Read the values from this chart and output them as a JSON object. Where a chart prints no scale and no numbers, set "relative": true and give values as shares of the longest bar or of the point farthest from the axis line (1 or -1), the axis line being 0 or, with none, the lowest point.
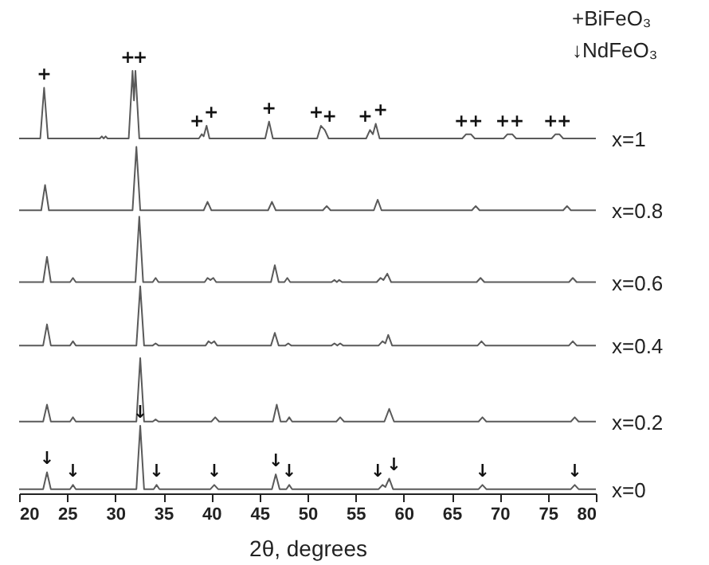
{
  "chart_data": {
    "type": "line",
    "relative": true,
    "xlabel": "2θ, degrees",
    "xlim": [
      20,
      80
    ],
    "xticks": [
      20,
      25,
      30,
      35,
      40,
      45,
      50,
      55,
      60,
      65,
      70,
      75,
      80
    ],
    "grid": false,
    "marker": "none",
    "line_style": "solid",
    "series": [
      {
        "name": "x=1",
        "color": "#5a5a5a",
        "x": [
          20,
          22.2,
          22.6,
          23.0,
          28.4,
          28.6,
          28.8,
          29.0,
          29.2,
          31.4,
          31.8,
          31.95,
          32.1,
          32.5,
          38.7,
          39.0,
          39.2,
          39.5,
          39.8,
          45.6,
          46.0,
          46.4,
          51.0,
          51.4,
          51.8,
          52.2,
          56.1,
          56.5,
          56.8,
          57.1,
          57.5,
          66.1,
          66.5,
          67.0,
          67.4,
          70.4,
          70.8,
          71.3,
          71.7,
          75.4,
          75.8,
          76.2,
          76.6,
          80
        ],
        "values": [
          0.84,
          0.84,
          0.96,
          0.84,
          0.84,
          0.845,
          0.84,
          0.845,
          0.84,
          0.84,
          1.0,
          0.93,
          1.0,
          0.84,
          0.84,
          0.85,
          0.845,
          0.87,
          0.84,
          0.84,
          0.88,
          0.84,
          0.84,
          0.87,
          0.86,
          0.84,
          0.84,
          0.86,
          0.85,
          0.875,
          0.84,
          0.84,
          0.85,
          0.85,
          0.84,
          0.84,
          0.85,
          0.85,
          0.84,
          0.84,
          0.85,
          0.85,
          0.84,
          0.84
        ]
      },
      {
        "name": "x=0.8",
        "color": "#5a5a5a",
        "x": [
          20,
          22.3,
          22.7,
          23.1,
          31.8,
          32.2,
          32.6,
          39.2,
          39.6,
          40.0,
          45.9,
          46.3,
          46.7,
          51.6,
          52.0,
          52.4,
          56.9,
          57.3,
          57.7,
          67.1,
          67.5,
          67.9,
          76.6,
          77.0,
          77.4,
          80
        ],
        "values": [
          0.67,
          0.67,
          0.73,
          0.67,
          0.67,
          0.82,
          0.67,
          0.67,
          0.69,
          0.67,
          0.67,
          0.69,
          0.67,
          0.67,
          0.68,
          0.67,
          0.67,
          0.695,
          0.67,
          0.67,
          0.68,
          0.67,
          0.67,
          0.68,
          0.67,
          0.67
        ]
      },
      {
        "name": "x=0.6",
        "color": "#5a5a5a",
        "x": [
          20,
          22.5,
          22.9,
          23.3,
          25.3,
          25.6,
          25.9,
          32.1,
          32.5,
          32.9,
          33.9,
          34.2,
          34.5,
          39.3,
          39.6,
          39.9,
          40.2,
          40.5,
          46.2,
          46.6,
          47.0,
          47.6,
          47.9,
          48.2,
          52.5,
          52.8,
          53.05,
          53.3,
          53.6,
          57.2,
          57.6,
          57.9,
          58.3,
          58.7,
          67.6,
          68.0,
          68.4,
          77.2,
          77.6,
          78.0,
          80
        ],
        "values": [
          0.5,
          0.5,
          0.56,
          0.5,
          0.5,
          0.51,
          0.5,
          0.5,
          0.655,
          0.5,
          0.5,
          0.51,
          0.5,
          0.5,
          0.51,
          0.505,
          0.51,
          0.5,
          0.5,
          0.54,
          0.5,
          0.5,
          0.51,
          0.5,
          0.5,
          0.505,
          0.5,
          0.505,
          0.5,
          0.5,
          0.51,
          0.505,
          0.52,
          0.5,
          0.5,
          0.51,
          0.5,
          0.5,
          0.51,
          0.5,
          0.5
        ]
      },
      {
        "name": "x=0.4",
        "color": "#5a5a5a",
        "x": [
          20,
          22.5,
          22.9,
          23.3,
          25.3,
          25.6,
          25.9,
          32.2,
          32.6,
          33.0,
          33.9,
          34.2,
          34.5,
          39.4,
          39.7,
          40.0,
          40.3,
          40.6,
          46.2,
          46.6,
          47.0,
          47.7,
          48.0,
          48.3,
          52.5,
          52.8,
          53.1,
          53.4,
          53.7,
          57.4,
          57.8,
          58.1,
          58.4,
          58.8,
          67.7,
          68.1,
          68.5,
          77.2,
          77.6,
          78.0,
          80
        ],
        "values": [
          0.35,
          0.35,
          0.4,
          0.35,
          0.35,
          0.36,
          0.35,
          0.35,
          0.49,
          0.35,
          0.35,
          0.355,
          0.35,
          0.35,
          0.36,
          0.355,
          0.36,
          0.35,
          0.35,
          0.38,
          0.35,
          0.35,
          0.355,
          0.35,
          0.35,
          0.355,
          0.35,
          0.355,
          0.35,
          0.35,
          0.36,
          0.355,
          0.375,
          0.35,
          0.35,
          0.36,
          0.35,
          0.35,
          0.36,
          0.35,
          0.35
        ]
      },
      {
        "name": "x=0.2",
        "color": "#5a5a5a",
        "x": [
          20,
          22.5,
          22.9,
          23.3,
          25.3,
          25.6,
          25.9,
          32.2,
          32.6,
          33.0,
          33.9,
          34.2,
          34.5,
          40.0,
          40.4,
          40.8,
          46.4,
          46.8,
          47.2,
          47.8,
          48.1,
          48.4,
          53.0,
          53.4,
          53.8,
          58.0,
          58.5,
          59.0,
          67.8,
          68.2,
          68.6,
          77.4,
          77.8,
          78.2,
          80
        ],
        "values": [
          0.17,
          0.17,
          0.21,
          0.17,
          0.17,
          0.18,
          0.17,
          0.17,
          0.32,
          0.17,
          0.17,
          0.175,
          0.17,
          0.17,
          0.18,
          0.17,
          0.17,
          0.21,
          0.17,
          0.17,
          0.18,
          0.17,
          0.17,
          0.18,
          0.17,
          0.17,
          0.2,
          0.17,
          0.17,
          0.18,
          0.17,
          0.17,
          0.18,
          0.17,
          0.17
        ]
      },
      {
        "name": "x=0",
        "color": "#5a5a5a",
        "x": [
          20,
          22.5,
          22.9,
          23.3,
          25.3,
          25.6,
          25.9,
          32.2,
          32.6,
          33.0,
          34.0,
          34.3,
          34.6,
          39.9,
          40.3,
          40.7,
          46.3,
          46.7,
          47.1,
          47.8,
          48.1,
          48.4,
          57.4,
          57.8,
          58.1,
          58.5,
          58.9,
          67.8,
          68.2,
          68.6,
          77.4,
          77.8,
          78.2,
          80
        ],
        "values": [
          0.01,
          0.01,
          0.05,
          0.01,
          0.01,
          0.02,
          0.01,
          0.01,
          0.16,
          0.01,
          0.01,
          0.02,
          0.01,
          0.01,
          0.02,
          0.01,
          0.01,
          0.045,
          0.01,
          0.01,
          0.02,
          0.01,
          0.01,
          0.02,
          0.015,
          0.035,
          0.01,
          0.01,
          0.02,
          0.01,
          0.01,
          0.02,
          0.01,
          0.01
        ]
      }
    ],
    "annotations": [
      "+BiFeO₃",
      "↓NdFeO₃",
      {
        "text": "+",
        "x": 22.6,
        "y": 0.96
      },
      {
        "text": "+",
        "x": 31.8,
        "y": 1.0
      },
      {
        "text": "+",
        "x": 32.1,
        "y": 1.0
      },
      {
        "text": "+",
        "x": 39.0,
        "y": 0.85
      },
      {
        "text": "+",
        "x": 39.5,
        "y": 0.87
      },
      {
        "text": "+",
        "x": 46.0,
        "y": 0.88
      },
      {
        "text": "+",
        "x": 51.4,
        "y": 0.87
      },
      {
        "text": "+",
        "x": 51.8,
        "y": 0.86
      },
      {
        "text": "+",
        "x": 56.5,
        "y": 0.86
      },
      {
        "text": "+",
        "x": 57.1,
        "y": 0.875
      },
      {
        "text": "+",
        "x": 66.5,
        "y": 0.85
      },
      {
        "text": "+",
        "x": 67.0,
        "y": 0.85
      },
      {
        "text": "+",
        "x": 70.8,
        "y": 0.85
      },
      {
        "text": "+",
        "x": 71.3,
        "y": 0.85
      },
      {
        "text": "+",
        "x": 75.8,
        "y": 0.85
      },
      {
        "text": "+",
        "x": 76.2,
        "y": 0.85
      },
      {
        "text": "↓",
        "x": 22.9,
        "y": 0.05
      },
      {
        "text": "↓",
        "x": 25.6,
        "y": 0.02
      },
      {
        "text": "↓",
        "x": 32.6,
        "y": 0.16
      },
      {
        "text": "↓",
        "x": 34.3,
        "y": 0.02
      },
      {
        "text": "↓",
        "x": 40.3,
        "y": 0.02
      },
      {
        "text": "↓",
        "x": 46.7,
        "y": 0.045
      },
      {
        "text": "↓",
        "x": 48.1,
        "y": 0.02
      },
      {
        "text": "↓",
        "x": 57.8,
        "y": 0.02
      },
      {
        "text": "↓",
        "x": 58.5,
        "y": 0.035
      },
      {
        "text": "↓",
        "x": 68.2,
        "y": 0.02
      },
      {
        "text": "↓",
        "x": 77.8,
        "y": 0.02
      }
    ]
  }
}
